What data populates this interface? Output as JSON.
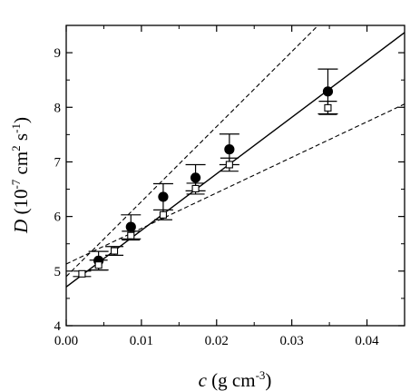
{
  "chart_data": {
    "type": "scatter",
    "x_axis": {
      "label_var": "c",
      "label_rest": " (g cm",
      "label_sup": "-3",
      "label_close": ")",
      "range": [
        0.0,
        0.045
      ],
      "ticks": [
        0.0,
        0.01,
        0.02,
        0.03,
        0.04
      ],
      "tick_labels": [
        "0.00",
        "0.01",
        "0.02",
        "0.03",
        "0.04"
      ]
    },
    "y_axis": {
      "label_var": "D",
      "label_open": " (10",
      "label_sup1": "-7",
      "label_mid": " cm",
      "label_sup2": "2",
      "label_mid2": " s",
      "label_sup3": "-1",
      "label_close": ")",
      "range": [
        4,
        9.5
      ],
      "ticks": [
        4,
        5,
        6,
        7,
        8,
        9
      ],
      "tick_labels": [
        "4",
        "5",
        "6",
        "7",
        "8",
        "9"
      ]
    },
    "grid": false,
    "series": [
      {
        "marker": "filled-circle",
        "points": [
          {
            "x": 0.0043,
            "y": 5.19,
            "err": 0.17
          },
          {
            "x": 0.0086,
            "y": 5.81,
            "err": 0.22
          },
          {
            "x": 0.0129,
            "y": 6.36,
            "err": 0.24
          },
          {
            "x": 0.0172,
            "y": 6.71,
            "err": 0.24
          },
          {
            "x": 0.0217,
            "y": 7.23,
            "err": 0.28
          },
          {
            "x": 0.0348,
            "y": 8.29,
            "err": 0.41
          }
        ]
      },
      {
        "marker": "open-square",
        "points": [
          {
            "x": 0.0021,
            "y": 4.95,
            "err": 0.05
          },
          {
            "x": 0.0043,
            "y": 5.11,
            "err": 0.09
          },
          {
            "x": 0.0064,
            "y": 5.37,
            "err": 0.08
          },
          {
            "x": 0.0086,
            "y": 5.65,
            "err": 0.08
          },
          {
            "x": 0.0129,
            "y": 6.03,
            "err": 0.09
          },
          {
            "x": 0.0172,
            "y": 6.51,
            "err": 0.1
          },
          {
            "x": 0.0217,
            "y": 6.95,
            "err": 0.12
          },
          {
            "x": 0.0348,
            "y": 7.99,
            "err": 0.12
          }
        ]
      }
    ],
    "lines": [
      {
        "style": "solid",
        "from": [
          0.0,
          4.71
        ],
        "to": [
          0.045,
          9.37
        ]
      },
      {
        "style": "dashed",
        "from": [
          0.0,
          4.9
        ],
        "to": [
          0.0335,
          9.5
        ]
      },
      {
        "style": "dashed",
        "from": [
          0.0,
          5.13
        ],
        "to": [
          0.045,
          8.06
        ]
      }
    ]
  }
}
